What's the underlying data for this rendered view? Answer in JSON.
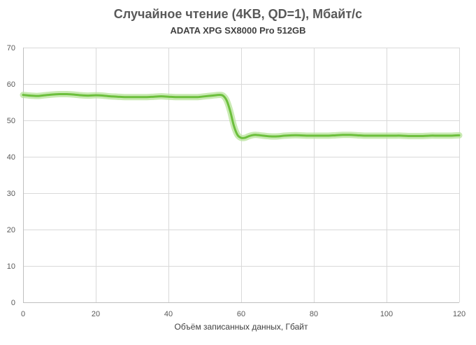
{
  "chart_data": {
    "type": "line",
    "title": "Случайное чтение (4KB, QD=1), Мбайт/с",
    "subtitle": "ADATA XPG SX8000  Pro 512GB",
    "xlabel": "Объём записанных данных, Гбайт",
    "ylabel": "",
    "xlim": [
      0,
      120
    ],
    "ylim": [
      0,
      70
    ],
    "x_ticks": [
      0,
      20,
      40,
      60,
      80,
      100,
      120
    ],
    "y_ticks": [
      0,
      10,
      20,
      30,
      40,
      50,
      60,
      70
    ],
    "grid": true,
    "legend": "none",
    "series": [
      {
        "color": "#6cbf3c",
        "band_color": "#b7e39a",
        "x": [
          0,
          2,
          4,
          6,
          8,
          10,
          12,
          14,
          16,
          18,
          20,
          22,
          24,
          26,
          28,
          30,
          32,
          34,
          36,
          38,
          40,
          42,
          44,
          46,
          48,
          50,
          52,
          54,
          55,
          56,
          57,
          58,
          59,
          60,
          61,
          62,
          63,
          64,
          66,
          68,
          70,
          72,
          74,
          76,
          78,
          80,
          82,
          84,
          86,
          88,
          90,
          92,
          94,
          96,
          98,
          100,
          102,
          104,
          106,
          108,
          110,
          112,
          114,
          116,
          118,
          120
        ],
        "y": [
          57.0,
          56.8,
          56.7,
          56.9,
          57.1,
          57.2,
          57.2,
          57.1,
          56.9,
          56.8,
          56.9,
          56.8,
          56.6,
          56.5,
          56.4,
          56.4,
          56.4,
          56.4,
          56.5,
          56.6,
          56.5,
          56.4,
          56.4,
          56.4,
          56.4,
          56.6,
          56.8,
          57.0,
          56.8,
          55.5,
          52.5,
          48.5,
          46.0,
          45.2,
          45.2,
          45.6,
          45.9,
          46.0,
          45.8,
          45.6,
          45.6,
          45.8,
          45.9,
          45.9,
          45.8,
          45.8,
          45.8,
          45.8,
          45.9,
          46.0,
          46.0,
          45.9,
          45.8,
          45.8,
          45.8,
          45.8,
          45.8,
          45.8,
          45.7,
          45.7,
          45.7,
          45.8,
          45.8,
          45.8,
          45.8,
          45.9
        ]
      }
    ]
  }
}
